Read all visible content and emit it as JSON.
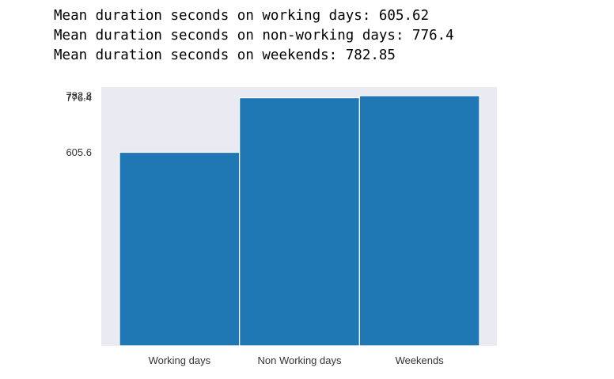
{
  "output_lines": [
    "Mean duration seconds on working days: 605.62",
    "Mean duration seconds on non-working days: 776.4",
    "Mean duration seconds on weekends: 782.85"
  ],
  "chart_data": {
    "type": "bar",
    "categories": [
      "Working days",
      "Non Working days",
      "Weekends"
    ],
    "values": [
      605.62,
      776.4,
      782.85
    ],
    "yticks": [
      "605.6",
      "776.4",
      "782.8"
    ],
    "ytick_values": [
      605.62,
      776.4,
      782.85
    ],
    "title": "",
    "xlabel": "",
    "ylabel": "",
    "ylim": [
      0,
      810
    ],
    "grid": false,
    "legend": "none",
    "bar_color": "#1f77b4",
    "axes_background": "#eaeaf2"
  }
}
